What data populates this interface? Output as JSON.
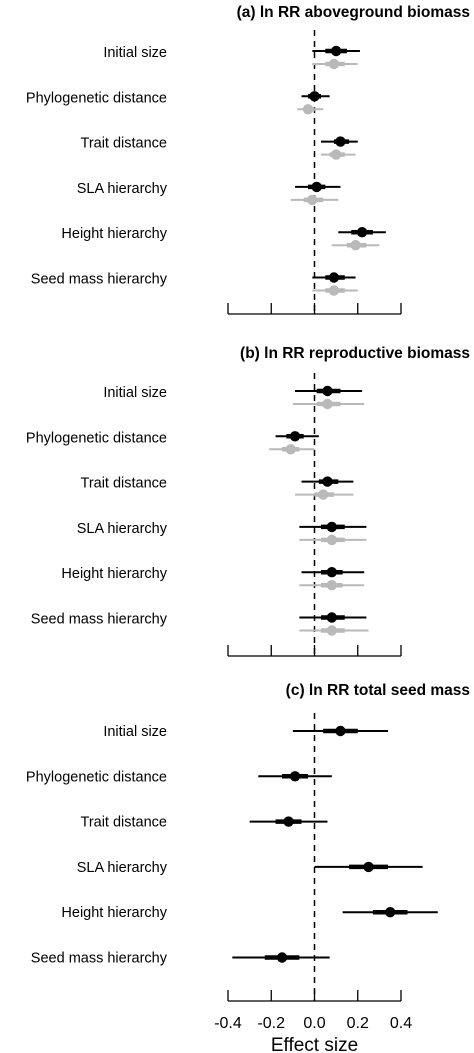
{
  "chart_data": [
    {
      "type": "forest",
      "title": "(a) ln RR aboveground biomass",
      "xlim": [
        -0.4,
        0.4
      ],
      "ticks": [
        -0.4,
        -0.2,
        0.0,
        0.2,
        0.4
      ],
      "reference_line": 0,
      "rows": [
        {
          "label": "Initial size",
          "black": {
            "mean": 0.1,
            "ci50": [
              0.05,
              0.15
            ],
            "ci95": [
              -0.01,
              0.21
            ]
          },
          "gray": {
            "mean": 0.09,
            "ci50": [
              0.05,
              0.14
            ],
            "ci95": [
              -0.01,
              0.2
            ]
          }
        },
        {
          "label": "Phylogenetic distance",
          "black": {
            "mean": 0.0,
            "ci50": [
              -0.03,
              0.03
            ],
            "ci95": [
              -0.06,
              0.07
            ]
          },
          "gray": {
            "mean": -0.03,
            "ci50": [
              -0.05,
              0.0
            ],
            "ci95": [
              -0.08,
              0.04
            ]
          }
        },
        {
          "label": "Trait distance",
          "black": {
            "mean": 0.12,
            "ci50": [
              0.09,
              0.16
            ],
            "ci95": [
              0.03,
              0.2
            ]
          },
          "gray": {
            "mean": 0.1,
            "ci50": [
              0.07,
              0.14
            ],
            "ci95": [
              0.03,
              0.19
            ]
          }
        },
        {
          "label": "SLA hierarchy",
          "black": {
            "mean": 0.01,
            "ci50": [
              -0.03,
              0.05
            ],
            "ci95": [
              -0.09,
              0.12
            ]
          },
          "gray": {
            "mean": -0.01,
            "ci50": [
              -0.05,
              0.04
            ],
            "ci95": [
              -0.11,
              0.11
            ]
          }
        },
        {
          "label": "Height hierarchy",
          "black": {
            "mean": 0.22,
            "ci50": [
              0.17,
              0.27
            ],
            "ci95": [
              0.11,
              0.33
            ]
          },
          "gray": {
            "mean": 0.19,
            "ci50": [
              0.15,
              0.24
            ],
            "ci95": [
              0.08,
              0.3
            ]
          }
        },
        {
          "label": "Seed mass hierarchy",
          "black": {
            "mean": 0.09,
            "ci50": [
              0.05,
              0.14
            ],
            "ci95": [
              -0.01,
              0.19
            ]
          },
          "gray": {
            "mean": 0.09,
            "ci50": [
              0.05,
              0.14
            ],
            "ci95": [
              -0.01,
              0.2
            ]
          }
        }
      ]
    },
    {
      "type": "forest",
      "title": "(b) ln RR reproductive biomass",
      "xlim": [
        -0.4,
        0.4
      ],
      "ticks": [
        -0.4,
        -0.2,
        0.0,
        0.2,
        0.4
      ],
      "reference_line": 0,
      "rows": [
        {
          "label": "Initial size",
          "black": {
            "mean": 0.06,
            "ci50": [
              0.01,
              0.12
            ],
            "ci95": [
              -0.09,
              0.22
            ]
          },
          "gray": {
            "mean": 0.06,
            "ci50": [
              0.01,
              0.12
            ],
            "ci95": [
              -0.1,
              0.23
            ]
          }
        },
        {
          "label": "Phylogenetic distance",
          "black": {
            "mean": -0.09,
            "ci50": [
              -0.13,
              -0.05
            ],
            "ci95": [
              -0.18,
              0.02
            ]
          },
          "gray": {
            "mean": -0.11,
            "ci50": [
              -0.15,
              -0.07
            ],
            "ci95": [
              -0.21,
              0.0
            ]
          }
        },
        {
          "label": "Trait distance",
          "black": {
            "mean": 0.06,
            "ci50": [
              0.02,
              0.11
            ],
            "ci95": [
              -0.06,
              0.18
            ]
          },
          "gray": {
            "mean": 0.04,
            "ci50": [
              0.0,
              0.09
            ],
            "ci95": [
              -0.09,
              0.18
            ]
          }
        },
        {
          "label": "SLA hierarchy",
          "black": {
            "mean": 0.08,
            "ci50": [
              0.03,
              0.14
            ],
            "ci95": [
              -0.07,
              0.24
            ]
          },
          "gray": {
            "mean": 0.08,
            "ci50": [
              0.03,
              0.14
            ],
            "ci95": [
              -0.07,
              0.24
            ]
          }
        },
        {
          "label": "Height hierarchy",
          "black": {
            "mean": 0.08,
            "ci50": [
              0.03,
              0.13
            ],
            "ci95": [
              -0.06,
              0.23
            ]
          },
          "gray": {
            "mean": 0.08,
            "ci50": [
              0.03,
              0.13
            ],
            "ci95": [
              -0.07,
              0.23
            ]
          }
        },
        {
          "label": "Seed mass hierarchy",
          "black": {
            "mean": 0.08,
            "ci50": [
              0.03,
              0.14
            ],
            "ci95": [
              -0.07,
              0.24
            ]
          },
          "gray": {
            "mean": 0.08,
            "ci50": [
              0.03,
              0.14
            ],
            "ci95": [
              -0.07,
              0.25
            ]
          }
        }
      ]
    },
    {
      "type": "forest",
      "title": "(c) ln RR total seed mass",
      "xlim": [
        -0.4,
        0.4
      ],
      "ticks": [
        -0.4,
        -0.2,
        0.0,
        0.2,
        0.4
      ],
      "tick_labels": [
        "-0.4",
        "-0.2",
        "0.0",
        "0.2",
        "0.4"
      ],
      "xlabel": "Effect size",
      "reference_line": 0,
      "rows": [
        {
          "label": "Initial size",
          "black": {
            "mean": 0.12,
            "ci50": [
              0.04,
              0.2
            ],
            "ci95": [
              -0.1,
              0.34
            ]
          }
        },
        {
          "label": "Phylogenetic distance",
          "black": {
            "mean": -0.09,
            "ci50": [
              -0.15,
              -0.03
            ],
            "ci95": [
              -0.26,
              0.08
            ]
          }
        },
        {
          "label": "Trait distance",
          "black": {
            "mean": -0.12,
            "ci50": [
              -0.18,
              -0.06
            ],
            "ci95": [
              -0.3,
              0.06
            ]
          }
        },
        {
          "label": "SLA hierarchy",
          "black": {
            "mean": 0.25,
            "ci50": [
              0.16,
              0.34
            ],
            "ci95": [
              0.0,
              0.5
            ]
          }
        },
        {
          "label": "Height hierarchy",
          "black": {
            "mean": 0.35,
            "ci50": [
              0.27,
              0.43
            ],
            "ci95": [
              0.13,
              0.57
            ]
          }
        },
        {
          "label": "Seed mass hierarchy",
          "black": {
            "mean": -0.15,
            "ci50": [
              -0.23,
              -0.07
            ],
            "ci95": [
              -0.38,
              0.07
            ]
          }
        }
      ]
    }
  ],
  "colors": {
    "primary": "#000000",
    "secondary": "#b9b9b9"
  }
}
